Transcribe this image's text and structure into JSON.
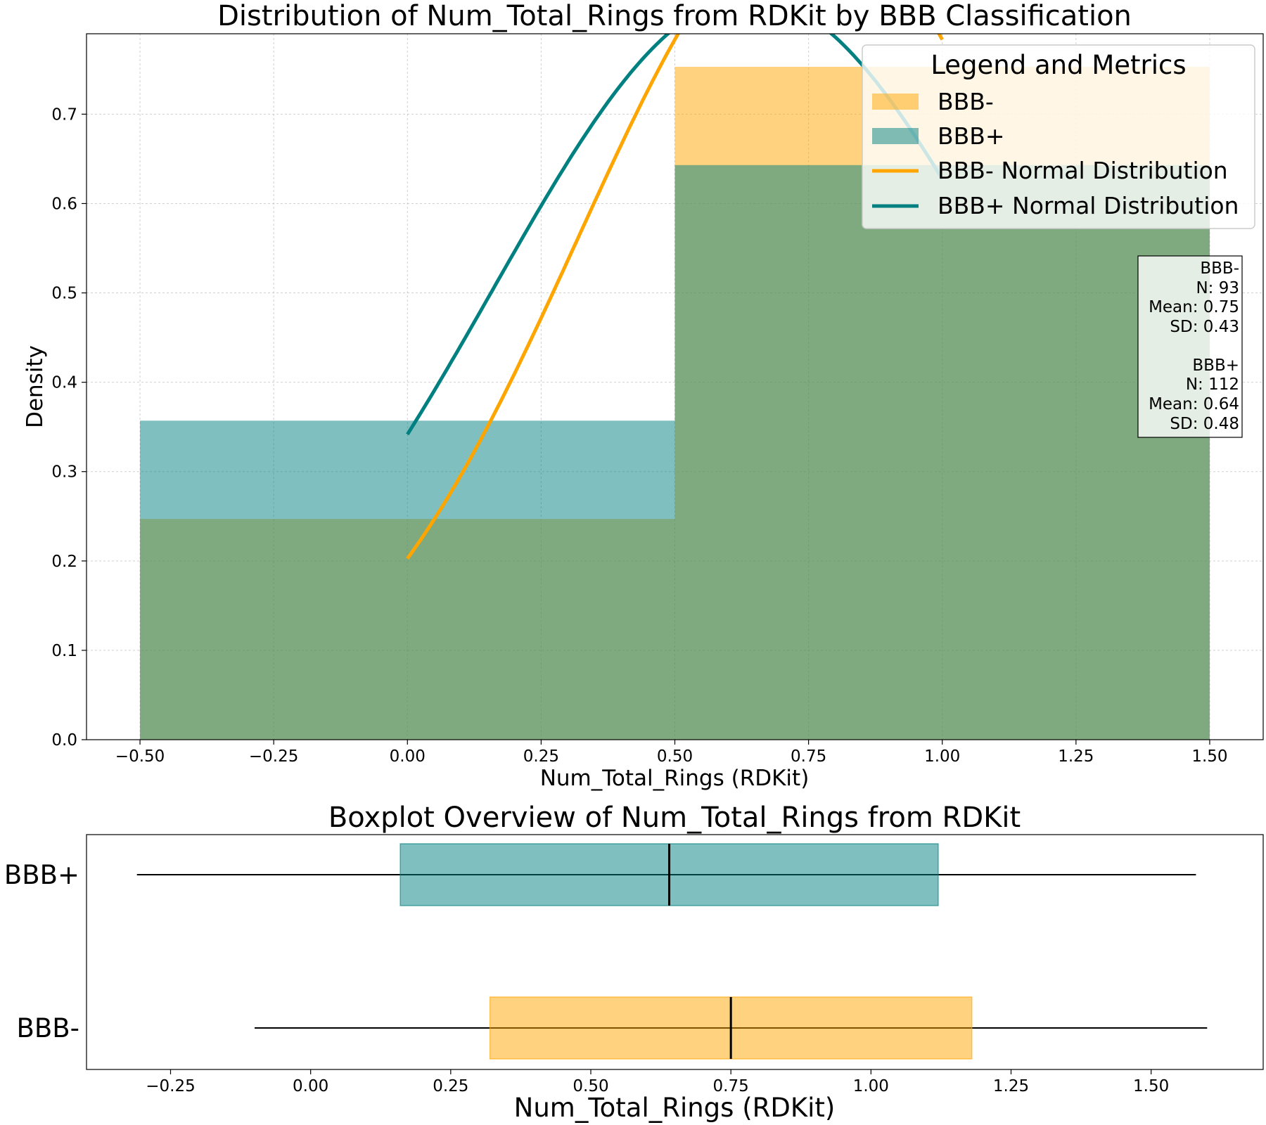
{
  "chart_data": [
    {
      "type": "histogram",
      "title": "Distribution of Num_Total_Rings from RDKit by BBB Classification",
      "xlabel": "Num_Total_Rings (RDKit)",
      "ylabel": "Density",
      "xlim": [
        -0.6,
        1.6
      ],
      "ylim": [
        0,
        0.79
      ],
      "xticks": [
        -0.5,
        -0.25,
        0.0,
        0.25,
        0.5,
        0.75,
        1.0,
        1.25,
        1.5
      ],
      "xtick_labels": [
        "−0.50",
        "−0.25",
        "0.00",
        "0.25",
        "0.50",
        "0.75",
        "1.00",
        "1.25",
        "1.50"
      ],
      "yticks": [
        0.0,
        0.1,
        0.2,
        0.3,
        0.4,
        0.5,
        0.6,
        0.7
      ],
      "ytick_labels": [
        "0.0",
        "0.1",
        "0.2",
        "0.3",
        "0.4",
        "0.5",
        "0.6",
        "0.7"
      ],
      "grid": true,
      "bin_edges": [
        -0.5,
        0.5,
        1.5
      ],
      "series": [
        {
          "name": "BBB-",
          "densities": [
            0.247,
            0.753
          ],
          "color": "#FFA500",
          "opacity": 0.5
        },
        {
          "name": "BBB+",
          "densities": [
            0.357,
            0.643
          ],
          "color": "#008080",
          "opacity": 0.5
        }
      ],
      "normal_curves": [
        {
          "name": "BBB- Normal Distribution",
          "mean": 0.75,
          "sd": 0.43,
          "x_range": [
            0,
            1
          ],
          "color": "#FFA500"
        },
        {
          "name": "BBB+ Normal Distribution",
          "mean": 0.64,
          "sd": 0.48,
          "x_range": [
            0,
            1
          ],
          "color": "#008080"
        }
      ],
      "legend": {
        "title": "Legend and Metrics",
        "placement": "top-right",
        "entries": [
          "BBB-",
          "BBB+",
          "BBB- Normal Distribution",
          "BBB+ Normal Distribution"
        ]
      },
      "stats_box": {
        "placement": "right",
        "lines": [
          "BBB-",
          "N: 93",
          "Mean: 0.75",
          "SD: 0.43",
          "",
          "BBB+",
          "N: 112",
          "Mean: 0.64",
          "SD: 0.48"
        ]
      }
    },
    {
      "type": "boxplot",
      "title": "Boxplot Overview of Num_Total_Rings from RDKit",
      "xlabel": "Num_Total_Rings (RDKit)",
      "xlim": [
        -0.4,
        1.7
      ],
      "xticks": [
        -0.25,
        0.0,
        0.25,
        0.5,
        0.75,
        1.0,
        1.25,
        1.5
      ],
      "xtick_labels": [
        "−0.25",
        "0.00",
        "0.25",
        "0.50",
        "0.75",
        "1.00",
        "1.25",
        "1.50"
      ],
      "categories": [
        "BBB+",
        "BBB-"
      ],
      "series": [
        {
          "name": "BBB+",
          "whisker_low": -0.31,
          "q1": 0.16,
          "median": 0.64,
          "q3": 1.12,
          "whisker_high": 1.58,
          "color": "#008080"
        },
        {
          "name": "BBB-",
          "whisker_low": -0.1,
          "q1": 0.32,
          "median": 0.75,
          "q3": 1.18,
          "whisker_high": 1.6,
          "color": "#FFA500"
        }
      ]
    }
  ]
}
